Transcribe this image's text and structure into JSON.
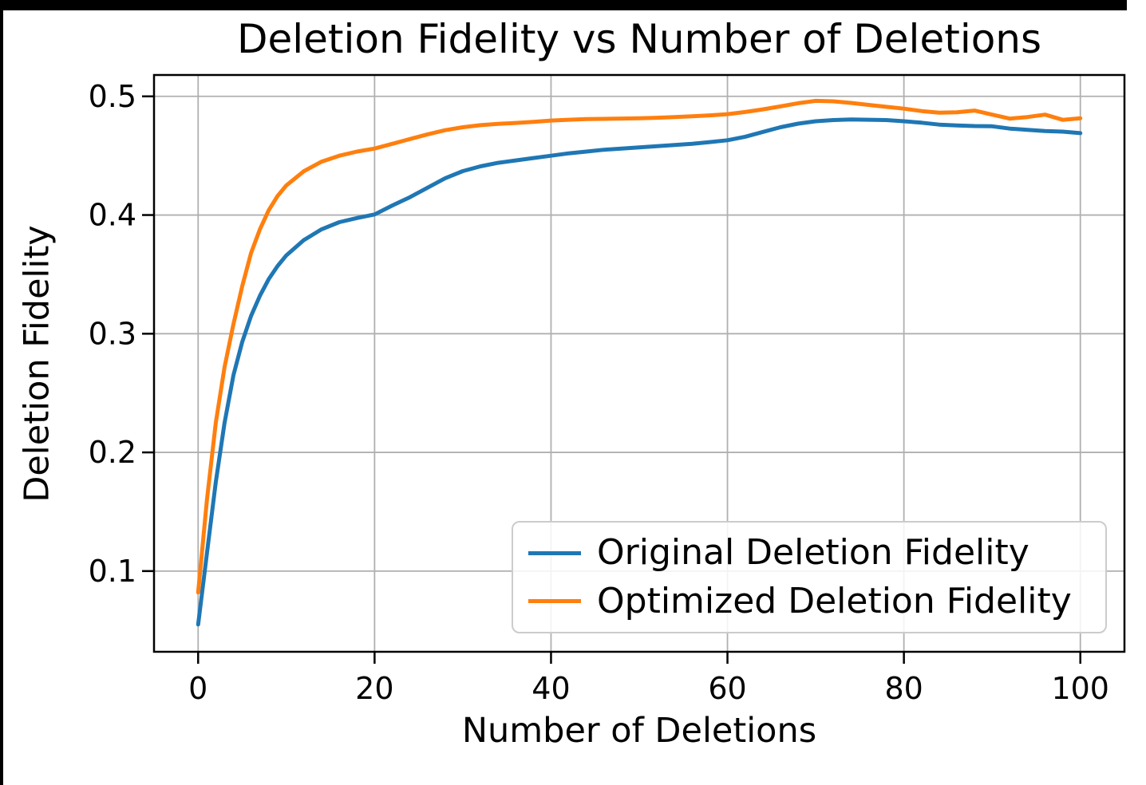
{
  "page": {
    "background_color": "#ffffff",
    "border_bar_color": "#000000"
  },
  "chart_data": {
    "type": "line",
    "title": "Deletion Fidelity vs Number of Deletions",
    "xlabel": "Number of Deletions",
    "ylabel": "Deletion Fidelity",
    "x_ticks": [
      0,
      20,
      40,
      60,
      80,
      100
    ],
    "y_ticks": [
      0.1,
      0.2,
      0.3,
      0.4,
      0.5
    ],
    "xlim": [
      -5,
      105
    ],
    "ylim": [
      0.032,
      0.518
    ],
    "grid": true,
    "grid_color": "#b0b0b0",
    "axis_color": "#000000",
    "legend_position": "lower right",
    "x": [
      0,
      1,
      2,
      3,
      4,
      5,
      6,
      7,
      8,
      9,
      10,
      12,
      14,
      16,
      18,
      20,
      22,
      24,
      26,
      28,
      30,
      32,
      34,
      36,
      38,
      40,
      42,
      44,
      46,
      48,
      50,
      52,
      54,
      56,
      58,
      60,
      62,
      64,
      66,
      68,
      70,
      72,
      74,
      76,
      78,
      80,
      82,
      84,
      86,
      88,
      90,
      92,
      94,
      96,
      98,
      100
    ],
    "series": [
      {
        "name": "Original Deletion Fidelity",
        "color": "#1f77b4",
        "values": [
          0.055,
          0.115,
          0.175,
          0.225,
          0.265,
          0.293,
          0.315,
          0.332,
          0.346,
          0.357,
          0.366,
          0.379,
          0.388,
          0.394,
          0.3975,
          0.4005,
          0.408,
          0.415,
          0.423,
          0.431,
          0.437,
          0.441,
          0.444,
          0.446,
          0.448,
          0.45,
          0.452,
          0.4535,
          0.455,
          0.456,
          0.457,
          0.458,
          0.459,
          0.46,
          0.4615,
          0.463,
          0.466,
          0.47,
          0.474,
          0.477,
          0.479,
          0.48,
          0.4805,
          0.4803,
          0.48,
          0.479,
          0.4778,
          0.4762,
          0.4755,
          0.475,
          0.4748,
          0.4728,
          0.4718,
          0.4708,
          0.4703,
          0.469
        ]
      },
      {
        "name": "Optimized Deletion Fidelity",
        "color": "#ff7f0e",
        "values": [
          0.082,
          0.16,
          0.225,
          0.272,
          0.308,
          0.34,
          0.368,
          0.388,
          0.404,
          0.416,
          0.425,
          0.437,
          0.445,
          0.45,
          0.4535,
          0.456,
          0.46,
          0.464,
          0.468,
          0.4715,
          0.474,
          0.4757,
          0.4768,
          0.4776,
          0.4785,
          0.4796,
          0.4803,
          0.4808,
          0.481,
          0.4813,
          0.4816,
          0.482,
          0.4826,
          0.4832,
          0.484,
          0.485,
          0.4868,
          0.489,
          0.4915,
          0.4942,
          0.4962,
          0.4958,
          0.4945,
          0.4928,
          0.4912,
          0.4896,
          0.4876,
          0.4862,
          0.4866,
          0.488,
          0.4846,
          0.4812,
          0.4826,
          0.4846,
          0.4802,
          0.4815
        ]
      }
    ]
  }
}
